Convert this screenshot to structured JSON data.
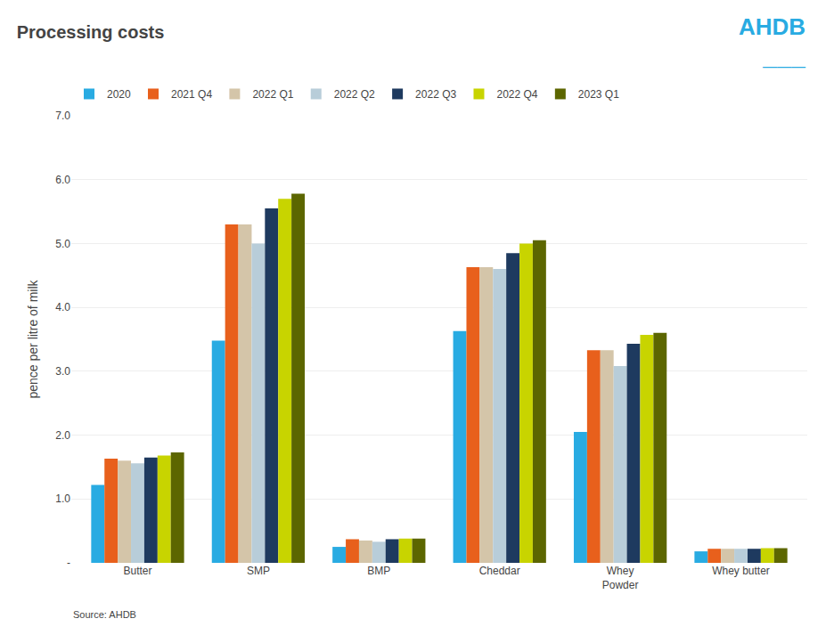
{
  "chart_data": {
    "type": "bar",
    "title": "Processing costs",
    "ylabel": "pence per litre of milk",
    "categories": [
      "Butter",
      "SMP",
      "BMP",
      "Cheddar",
      "Whey\nPowder",
      "Whey butter"
    ],
    "series": [
      {
        "name": "2020",
        "color": "#29ABE2",
        "values": [
          1.22,
          3.48,
          0.25,
          3.63,
          2.05,
          0.18
        ]
      },
      {
        "name": "2021 Q4",
        "color": "#E8601C",
        "values": [
          1.63,
          5.3,
          0.37,
          4.63,
          3.33,
          0.22
        ]
      },
      {
        "name": "2022 Q1",
        "color": "#D4C5A9",
        "values": [
          1.6,
          5.3,
          0.35,
          4.63,
          3.33,
          0.22
        ]
      },
      {
        "name": "2022 Q2",
        "color": "#B8CDD9",
        "values": [
          1.56,
          5.0,
          0.33,
          4.6,
          3.08,
          0.22
        ]
      },
      {
        "name": "2022 Q3",
        "color": "#1E3A5F",
        "values": [
          1.65,
          5.55,
          0.37,
          4.85,
          3.43,
          0.22
        ]
      },
      {
        "name": "2022 Q4",
        "color": "#C8D400",
        "values": [
          1.68,
          5.7,
          0.38,
          5.0,
          3.57,
          0.23
        ]
      },
      {
        "name": "2023 Q1",
        "color": "#5C6600",
        "values": [
          1.73,
          5.78,
          0.38,
          5.05,
          3.6,
          0.23
        ]
      }
    ],
    "ylim": [
      0,
      7.0
    ],
    "yticks": [
      {
        "value": 0,
        "label": "-"
      },
      {
        "value": 1.0,
        "label": "1.0"
      },
      {
        "value": 2.0,
        "label": "2.0"
      },
      {
        "value": 3.0,
        "label": "3.0"
      },
      {
        "value": 4.0,
        "label": "4.0"
      },
      {
        "value": 5.0,
        "label": "5.0"
      },
      {
        "value": 6.0,
        "label": "6.0"
      },
      {
        "value": 7.0,
        "label": "7.0"
      }
    ],
    "grid": true,
    "legend": "upper left",
    "annotations": [
      {
        "text": "Source: AHDB"
      },
      {
        "text": "AHDB",
        "color": "#29ABE2"
      },
      {
        "text": "———",
        "color": "#29ABE2"
      }
    ]
  }
}
